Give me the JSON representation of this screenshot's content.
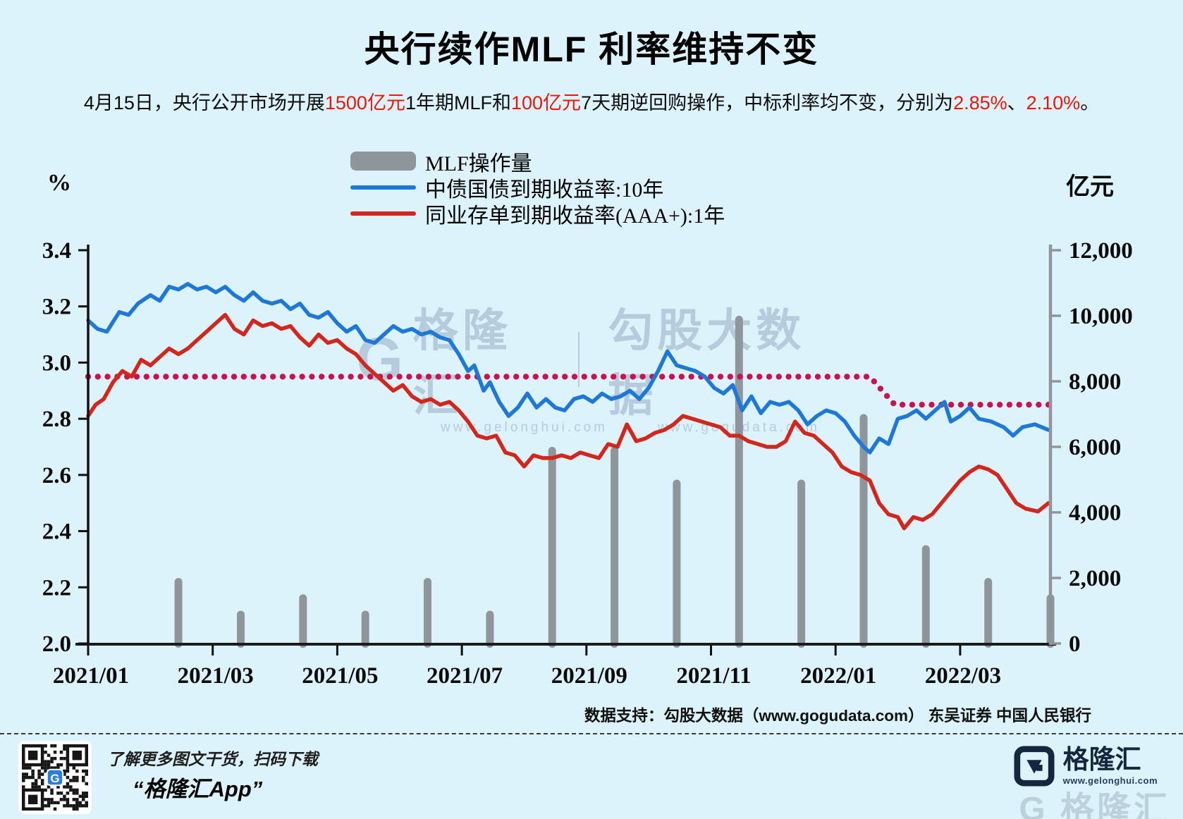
{
  "header": {
    "title": "央行续作MLF 利率维持不变",
    "subtitle_segments": [
      {
        "text": "4月15日，央行公开市场开展",
        "red": false
      },
      {
        "text": "1500亿元",
        "red": true
      },
      {
        "text": "1年期MLF和",
        "red": false
      },
      {
        "text": "100亿元",
        "red": true
      },
      {
        "text": "7天期逆回购操作，中标利率均不变，分别为",
        "red": false
      },
      {
        "text": "2.85%",
        "red": true
      },
      {
        "text": "、",
        "red": false
      },
      {
        "text": "2.10%",
        "red": true
      },
      {
        "text": "。",
        "red": false
      }
    ]
  },
  "watermark": {
    "g_glyph": "G",
    "brand": "格隆汇",
    "brand_url": "www.gelonghui.com",
    "data_brand": "勾股大数据",
    "data_url": "www.gogudata.com"
  },
  "footer": {
    "support_line": "数据支持：勾股大数据（www.gogudata.com）  东吴证券 中国人民银行",
    "promo_line1": "了解更多图文干货，扫码下载",
    "promo_line2": "“格隆汇App”",
    "logo_text": "格隆汇",
    "logo_url": "www.gelonghui.com",
    "ghost_text": "G 格隆汇"
  },
  "chart_data": {
    "type": "combo",
    "title": "央行续作MLF 利率维持不变",
    "legend_position": "top-center",
    "grid": false,
    "left_axis": {
      "label": "%",
      "min": 2.0,
      "max": 3.4,
      "tick_labels": [
        "3.4",
        "3.2",
        "3.0",
        "2.8",
        "2.6",
        "2.4",
        "2.2",
        "2.0"
      ]
    },
    "right_axis": {
      "label": "亿元",
      "min": 0,
      "max": 12000,
      "tick_labels": [
        "12,000",
        "10,000",
        "8,000",
        "6,000",
        "4,000",
        "2,000",
        "0"
      ]
    },
    "x_tick_labels": [
      "2021/01",
      "2021/03",
      "2021/05",
      "2021/07",
      "2021/09",
      "2021/11",
      "2022/01",
      "2022/03"
    ],
    "legend": [
      {
        "label": "MLF操作量",
        "type": "bar",
        "color": "#8e969b"
      },
      {
        "label": "中债国债到期收益率:10年",
        "type": "line",
        "color": "#1e78d8"
      },
      {
        "label": "同业存单到期收益率(AAA+):1年",
        "type": "line",
        "color": "#d3271d"
      }
    ],
    "bars": {
      "name": "MLF操作量",
      "axis": "right",
      "unit": "亿元",
      "color": "#8e969b",
      "months": [
        "2021/02",
        "2021/03",
        "2021/04",
        "2021/05",
        "2021/06",
        "2021/07",
        "2021/08",
        "2021/09",
        "2021/10",
        "2021/11",
        "2021/12",
        "2022/01",
        "2022/02",
        "2022/03",
        "2022/04"
      ],
      "values": [
        2000,
        1000,
        1500,
        1000,
        2000,
        1000,
        6000,
        6000,
        5000,
        10000,
        5000,
        7000,
        3000,
        2000,
        1500
      ]
    },
    "policy_line": {
      "name": "MLF利率",
      "style": "dotted",
      "color": "#cc1050",
      "unit": "%",
      "points": [
        [
          0,
          2.95
        ],
        [
          12.55,
          2.95
        ],
        [
          12.95,
          2.85
        ],
        [
          15.42,
          2.85
        ]
      ]
    },
    "series": [
      {
        "name": "中债国债到期收益率:10年",
        "color": "#1e78d8",
        "axis": "left",
        "unit": "%",
        "points": [
          [
            0,
            3.15
          ],
          [
            0.15,
            3.12
          ],
          [
            0.3,
            3.11
          ],
          [
            0.5,
            3.18
          ],
          [
            0.65,
            3.17
          ],
          [
            0.8,
            3.21
          ],
          [
            1.0,
            3.24
          ],
          [
            1.15,
            3.22
          ],
          [
            1.3,
            3.27
          ],
          [
            1.45,
            3.26
          ],
          [
            1.6,
            3.28
          ],
          [
            1.75,
            3.26
          ],
          [
            1.9,
            3.27
          ],
          [
            2.05,
            3.25
          ],
          [
            2.2,
            3.27
          ],
          [
            2.35,
            3.24
          ],
          [
            2.5,
            3.22
          ],
          [
            2.65,
            3.25
          ],
          [
            2.8,
            3.22
          ],
          [
            2.95,
            3.21
          ],
          [
            3.1,
            3.22
          ],
          [
            3.25,
            3.19
          ],
          [
            3.4,
            3.21
          ],
          [
            3.55,
            3.17
          ],
          [
            3.7,
            3.16
          ],
          [
            3.85,
            3.18
          ],
          [
            4.0,
            3.14
          ],
          [
            4.15,
            3.11
          ],
          [
            4.3,
            3.13
          ],
          [
            4.45,
            3.08
          ],
          [
            4.6,
            3.07
          ],
          [
            4.75,
            3.1
          ],
          [
            4.9,
            3.13
          ],
          [
            5.05,
            3.11
          ],
          [
            5.2,
            3.12
          ],
          [
            5.35,
            3.1
          ],
          [
            5.5,
            3.11
          ],
          [
            5.65,
            3.09
          ],
          [
            5.8,
            3.08
          ],
          [
            5.95,
            3.03
          ],
          [
            6.1,
            2.97
          ],
          [
            6.2,
            2.99
          ],
          [
            6.35,
            2.9
          ],
          [
            6.45,
            2.93
          ],
          [
            6.6,
            2.86
          ],
          [
            6.75,
            2.81
          ],
          [
            6.9,
            2.84
          ],
          [
            7.05,
            2.89
          ],
          [
            7.2,
            2.84
          ],
          [
            7.35,
            2.87
          ],
          [
            7.5,
            2.84
          ],
          [
            7.65,
            2.83
          ],
          [
            7.8,
            2.87
          ],
          [
            7.95,
            2.88
          ],
          [
            8.1,
            2.86
          ],
          [
            8.25,
            2.89
          ],
          [
            8.4,
            2.87
          ],
          [
            8.55,
            2.88
          ],
          [
            8.7,
            2.9
          ],
          [
            8.85,
            2.87
          ],
          [
            9.0,
            2.91
          ],
          [
            9.15,
            2.97
          ],
          [
            9.3,
            3.04
          ],
          [
            9.45,
            2.99
          ],
          [
            9.6,
            2.98
          ],
          [
            9.75,
            2.97
          ],
          [
            9.9,
            2.95
          ],
          [
            10.05,
            2.91
          ],
          [
            10.2,
            2.89
          ],
          [
            10.35,
            2.92
          ],
          [
            10.5,
            2.83
          ],
          [
            10.65,
            2.88
          ],
          [
            10.8,
            2.82
          ],
          [
            10.95,
            2.86
          ],
          [
            11.1,
            2.85
          ],
          [
            11.25,
            2.86
          ],
          [
            11.4,
            2.83
          ],
          [
            11.55,
            2.78
          ],
          [
            11.7,
            2.81
          ],
          [
            11.85,
            2.83
          ],
          [
            12.0,
            2.82
          ],
          [
            12.15,
            2.79
          ],
          [
            12.3,
            2.74
          ],
          [
            12.45,
            2.7
          ],
          [
            12.55,
            2.68
          ],
          [
            12.7,
            2.73
          ],
          [
            12.85,
            2.71
          ],
          [
            13.0,
            2.8
          ],
          [
            13.15,
            2.81
          ],
          [
            13.3,
            2.83
          ],
          [
            13.45,
            2.8
          ],
          [
            13.6,
            2.83
          ],
          [
            13.75,
            2.86
          ],
          [
            13.85,
            2.79
          ],
          [
            14.0,
            2.81
          ],
          [
            14.15,
            2.84
          ],
          [
            14.3,
            2.8
          ],
          [
            14.5,
            2.79
          ],
          [
            14.7,
            2.77
          ],
          [
            14.85,
            2.74
          ],
          [
            15.0,
            2.77
          ],
          [
            15.2,
            2.78
          ],
          [
            15.42,
            2.76
          ]
        ]
      },
      {
        "name": "同业存单到期收益率(AAA+):1年",
        "color": "#d3271d",
        "axis": "left",
        "unit": "%",
        "points": [
          [
            0,
            2.81
          ],
          [
            0.12,
            2.85
          ],
          [
            0.25,
            2.87
          ],
          [
            0.4,
            2.93
          ],
          [
            0.55,
            2.97
          ],
          [
            0.7,
            2.95
          ],
          [
            0.85,
            3.01
          ],
          [
            1.0,
            2.99
          ],
          [
            1.15,
            3.02
          ],
          [
            1.3,
            3.05
          ],
          [
            1.45,
            3.03
          ],
          [
            1.6,
            3.05
          ],
          [
            1.75,
            3.08
          ],
          [
            1.9,
            3.11
          ],
          [
            2.05,
            3.14
          ],
          [
            2.2,
            3.17
          ],
          [
            2.35,
            3.12
          ],
          [
            2.5,
            3.1
          ],
          [
            2.65,
            3.15
          ],
          [
            2.8,
            3.13
          ],
          [
            2.95,
            3.14
          ],
          [
            3.1,
            3.12
          ],
          [
            3.25,
            3.13
          ],
          [
            3.4,
            3.09
          ],
          [
            3.55,
            3.06
          ],
          [
            3.7,
            3.1
          ],
          [
            3.85,
            3.07
          ],
          [
            4.0,
            3.08
          ],
          [
            4.15,
            3.05
          ],
          [
            4.3,
            3.03
          ],
          [
            4.45,
            2.99
          ],
          [
            4.6,
            2.96
          ],
          [
            4.75,
            2.93
          ],
          [
            4.9,
            2.9
          ],
          [
            5.05,
            2.92
          ],
          [
            5.2,
            2.88
          ],
          [
            5.35,
            2.86
          ],
          [
            5.5,
            2.87
          ],
          [
            5.65,
            2.85
          ],
          [
            5.8,
            2.86
          ],
          [
            5.95,
            2.83
          ],
          [
            6.1,
            2.79
          ],
          [
            6.25,
            2.74
          ],
          [
            6.4,
            2.73
          ],
          [
            6.55,
            2.74
          ],
          [
            6.7,
            2.68
          ],
          [
            6.85,
            2.67
          ],
          [
            7.0,
            2.63
          ],
          [
            7.15,
            2.67
          ],
          [
            7.3,
            2.66
          ],
          [
            7.45,
            2.66
          ],
          [
            7.6,
            2.67
          ],
          [
            7.75,
            2.66
          ],
          [
            7.9,
            2.68
          ],
          [
            8.05,
            2.67
          ],
          [
            8.2,
            2.66
          ],
          [
            8.35,
            2.71
          ],
          [
            8.5,
            2.7
          ],
          [
            8.65,
            2.78
          ],
          [
            8.8,
            2.72
          ],
          [
            8.95,
            2.73
          ],
          [
            9.1,
            2.75
          ],
          [
            9.25,
            2.76
          ],
          [
            9.4,
            2.78
          ],
          [
            9.55,
            2.81
          ],
          [
            9.7,
            2.8
          ],
          [
            9.85,
            2.79
          ],
          [
            10.0,
            2.78
          ],
          [
            10.15,
            2.77
          ],
          [
            10.3,
            2.74
          ],
          [
            10.45,
            2.74
          ],
          [
            10.6,
            2.72
          ],
          [
            10.75,
            2.71
          ],
          [
            10.9,
            2.7
          ],
          [
            11.05,
            2.7
          ],
          [
            11.2,
            2.72
          ],
          [
            11.35,
            2.79
          ],
          [
            11.5,
            2.75
          ],
          [
            11.65,
            2.74
          ],
          [
            11.8,
            2.71
          ],
          [
            11.95,
            2.68
          ],
          [
            12.1,
            2.63
          ],
          [
            12.25,
            2.61
          ],
          [
            12.4,
            2.6
          ],
          [
            12.55,
            2.58
          ],
          [
            12.7,
            2.5
          ],
          [
            12.85,
            2.46
          ],
          [
            13.0,
            2.45
          ],
          [
            13.1,
            2.41
          ],
          [
            13.25,
            2.45
          ],
          [
            13.4,
            2.44
          ],
          [
            13.55,
            2.46
          ],
          [
            13.7,
            2.5
          ],
          [
            13.85,
            2.54
          ],
          [
            14.0,
            2.58
          ],
          [
            14.15,
            2.61
          ],
          [
            14.3,
            2.63
          ],
          [
            14.45,
            2.62
          ],
          [
            14.6,
            2.6
          ],
          [
            14.75,
            2.55
          ],
          [
            14.9,
            2.5
          ],
          [
            15.05,
            2.48
          ],
          [
            15.25,
            2.47
          ],
          [
            15.42,
            2.5
          ]
        ]
      }
    ]
  }
}
